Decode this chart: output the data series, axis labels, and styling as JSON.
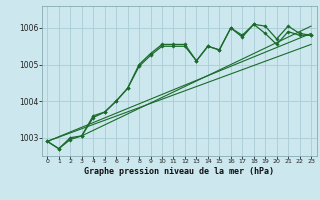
{
  "title": "Graphe pression niveau de la mer (hPa)",
  "bg_color": "#cce8ee",
  "grid_color": "#aaccd4",
  "line_color": "#1a6b2a",
  "xlim": [
    -0.5,
    23.5
  ],
  "ylim": [
    1002.5,
    1006.6
  ],
  "yticks": [
    1003,
    1004,
    1005,
    1006
  ],
  "ytick_labels": [
    "1003",
    "1004",
    "1005",
    "1006"
  ],
  "xticks": [
    0,
    1,
    2,
    3,
    4,
    5,
    6,
    7,
    8,
    9,
    10,
    11,
    12,
    13,
    14,
    15,
    16,
    17,
    18,
    19,
    20,
    21,
    22,
    23
  ],
  "series1_x": [
    0,
    1,
    2,
    3,
    4,
    5,
    6,
    7,
    8,
    9,
    10,
    11,
    12,
    13,
    14,
    15,
    16,
    17,
    18,
    19,
    20,
    21,
    22,
    23
  ],
  "series1_y": [
    1002.9,
    1002.7,
    1002.95,
    1003.05,
    1003.6,
    1003.7,
    1004.0,
    1004.35,
    1005.0,
    1005.3,
    1005.55,
    1005.55,
    1005.55,
    1005.1,
    1005.5,
    1005.4,
    1006.0,
    1005.8,
    1006.1,
    1006.05,
    1005.7,
    1006.05,
    1005.85,
    1005.8
  ],
  "series2_x": [
    0,
    1,
    2,
    3,
    4,
    5,
    6,
    7,
    8,
    9,
    10,
    11,
    12,
    13,
    14,
    15,
    16,
    17,
    18,
    19,
    20,
    21,
    22,
    23
  ],
  "series2_y": [
    1002.9,
    1002.7,
    1003.0,
    1003.05,
    1003.55,
    1003.7,
    1004.0,
    1004.35,
    1004.95,
    1005.25,
    1005.5,
    1005.5,
    1005.5,
    1005.1,
    1005.5,
    1005.4,
    1006.0,
    1005.75,
    1006.1,
    1005.85,
    1005.55,
    1005.9,
    1005.8,
    1005.8
  ],
  "line1_x": [
    0,
    23
  ],
  "line1_y": [
    1002.9,
    1005.85
  ],
  "line2_x": [
    0,
    23
  ],
  "line2_y": [
    1002.9,
    1005.55
  ],
  "line3_x": [
    3,
    23
  ],
  "line3_y": [
    1003.05,
    1006.05
  ]
}
